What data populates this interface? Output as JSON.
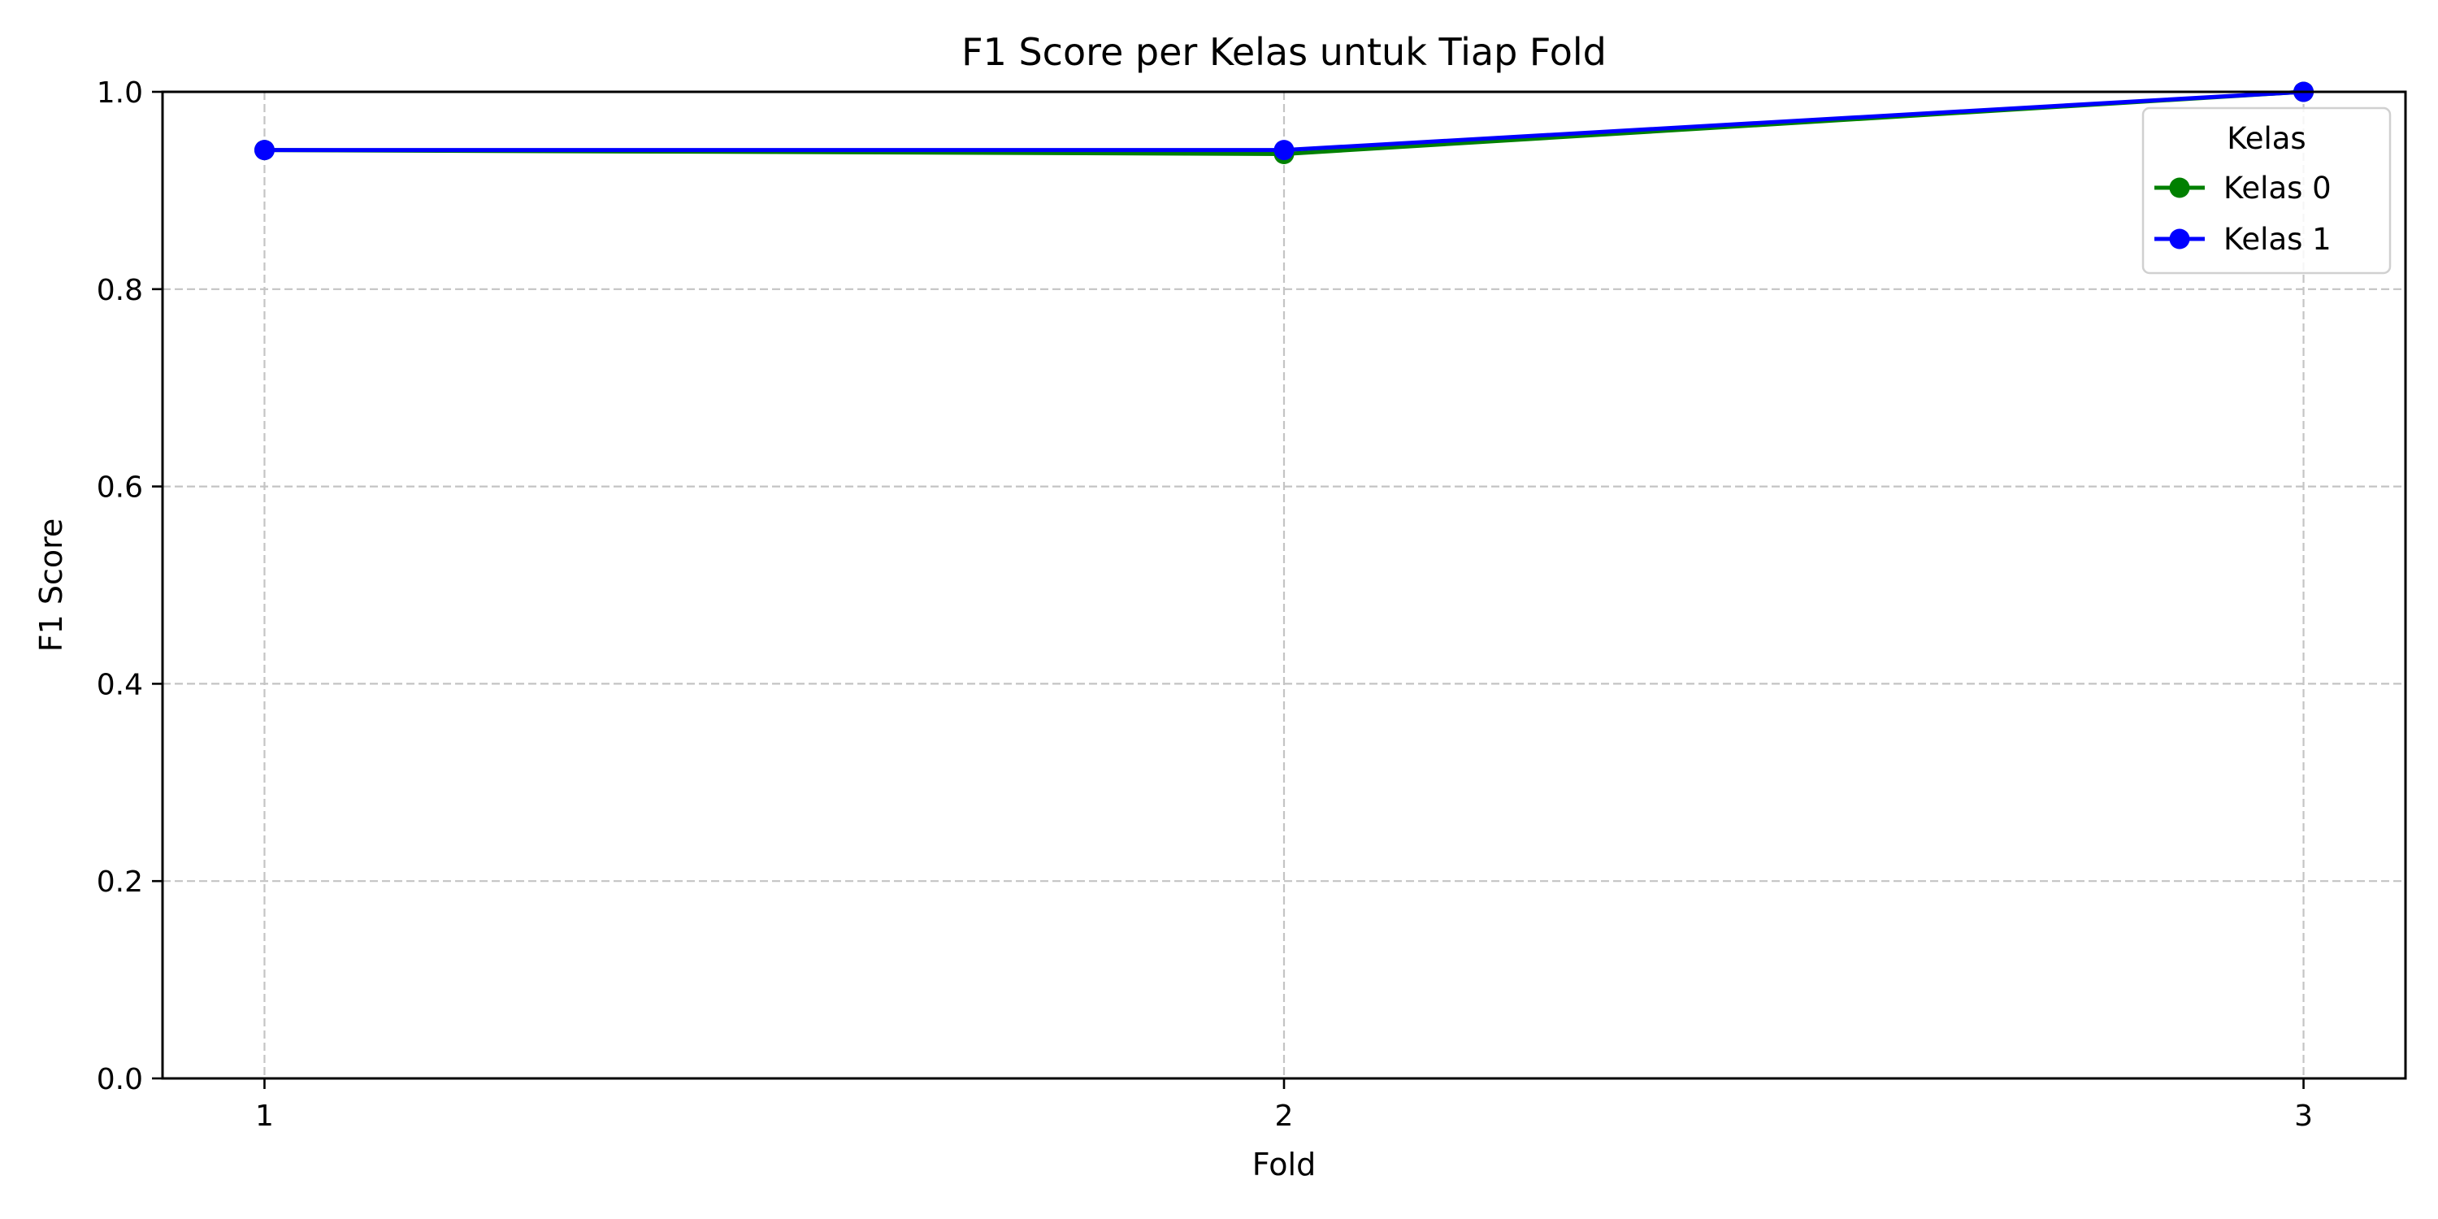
{
  "chart_data": {
    "type": "line",
    "title": "F1 Score per Kelas untuk Tiap Fold",
    "xlabel": "Fold",
    "ylabel": "F1 Score",
    "x": [
      1,
      2,
      3
    ],
    "x_tick_labels": [
      "1",
      "2",
      "3"
    ],
    "xlim": [
      0.9,
      3.1
    ],
    "ylim": [
      0,
      1
    ],
    "y_ticks": [
      0.0,
      0.2,
      0.4,
      0.6,
      0.8,
      1.0
    ],
    "y_tick_labels": [
      "0.0",
      "0.2",
      "0.4",
      "0.6",
      "0.8",
      "1.0"
    ],
    "grid": true,
    "legend": {
      "title": "Kelas",
      "placement": "top-right"
    },
    "series": [
      {
        "name": "Kelas 0",
        "color": "#008000",
        "marker": "circle",
        "values": [
          0.941,
          0.937,
          1.0
        ]
      },
      {
        "name": "Kelas 1",
        "color": "#0000ff",
        "marker": "circle",
        "values": [
          0.941,
          0.941,
          1.0
        ]
      }
    ]
  }
}
